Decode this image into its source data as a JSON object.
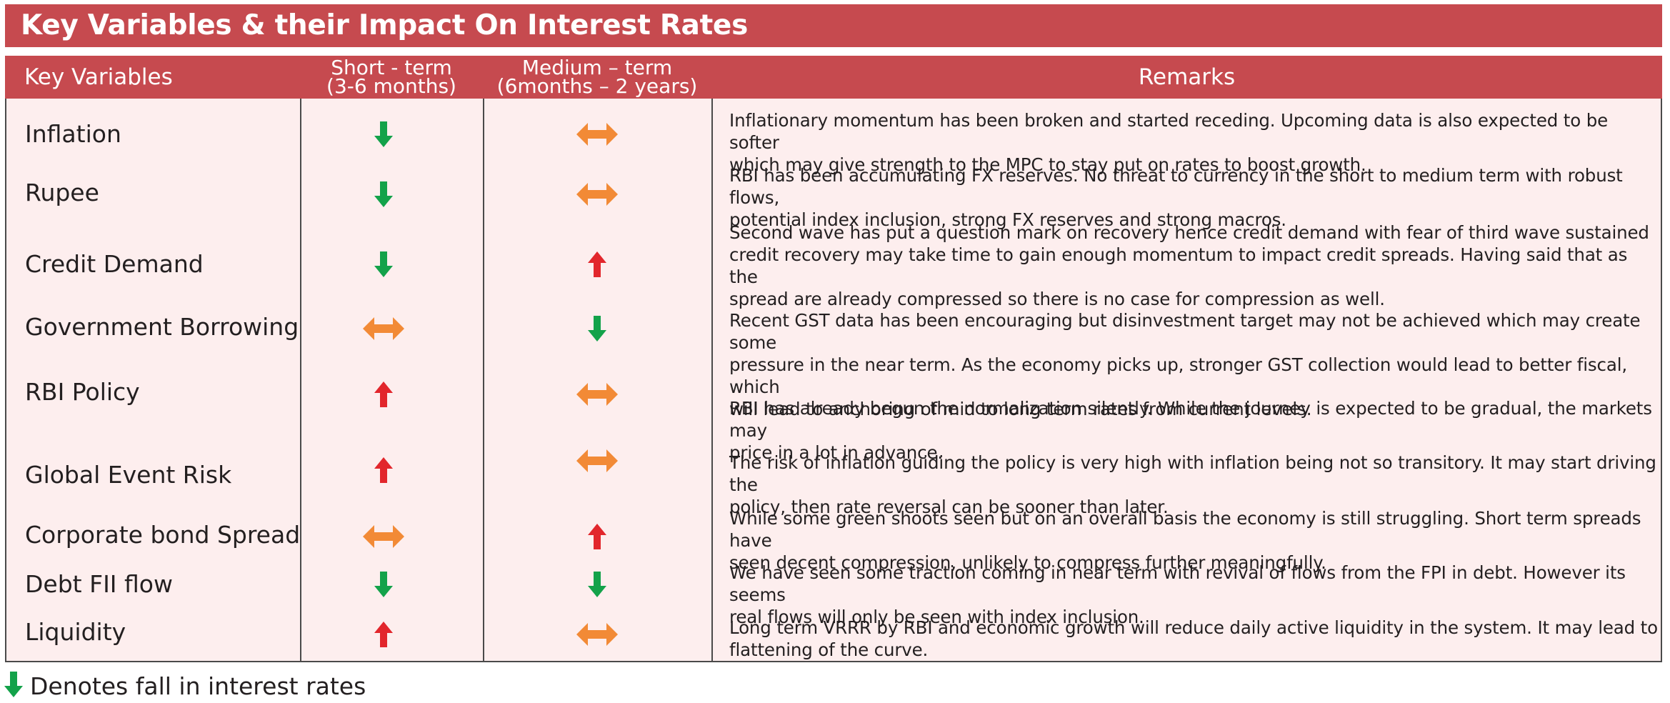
{
  "title": "Key Variables & their Impact On Interest Rates",
  "columns": {
    "variable": "Key Variables",
    "short_line1": "Short  - term",
    "short_line2": "(3-6 months)",
    "medium_line1": "Medium – term",
    "medium_line2": "(6months – 2 years)",
    "remarks": "Remarks"
  },
  "colors": {
    "header_bg": "#c64a4f",
    "body_bg": "#fdeeee",
    "down_arrow": "#13a24a",
    "up_arrow": "#e2262c",
    "sideways_arrow": "#f28a36"
  },
  "arrow_legend": {
    "down": "green down-arrow-icon",
    "up": "red up-arrow-icon",
    "flat": "orange left-right-arrow-icon"
  },
  "rows": [
    {
      "variable": "Inflation",
      "short_term": "down",
      "medium_term": "flat",
      "remark_lines": [
        "Inflationary momentum has been broken and started receding. Upcoming data is also expected to be softer",
        "which may give strength to the MPC to stay put on rates to boost  growth."
      ]
    },
    {
      "variable": "Rupee",
      "short_term": "down",
      "medium_term": "flat",
      "remark_lines": [
        "RBI has been accumulating FX reserves. No threat to currency in the short to medium term with robust flows,",
        "potential index inclusion, strong FX reserves and strong macros."
      ]
    },
    {
      "variable": "Credit Demand",
      "short_term": "down",
      "medium_term": "up",
      "remark_lines": [
        "Second wave has put a question mark on recovery hence credit demand with fear of third wave sustained",
        "credit recovery may take time to gain enough momentum to impact credit spreads. Having said that as the",
        "spread are already compressed so there is no case for compression as well."
      ]
    },
    {
      "variable": "Government Borrowing",
      "short_term": "flat",
      "medium_term": "down",
      "remark_lines": [
        "Recent GST data has been encouraging but disinvestment target may not be achieved which may create some",
        "pressure in the near term. As the economy picks up, stronger GST collection would lead to better fiscal, which",
        "will lead to anchoring of mid to long term rates from current levels."
      ]
    },
    {
      "variable": "RBI Policy",
      "short_term": "up",
      "medium_term": "flat",
      "remark_lines": [
        "RBI has already begun the normalization silently. While the journey is expected to be gradual, the markets may",
        "price in a lot in advance."
      ]
    },
    {
      "variable": "Global Event Risk",
      "short_term": "up",
      "medium_term": "flat",
      "remark_lines": [
        "The risk of inflation guiding the policy is very high with inflation being not so transitory. It may start driving the",
        "policy, then rate reversal can be sooner than later."
      ]
    },
    {
      "variable": "Corporate bond Spread",
      "short_term": "flat",
      "medium_term": "up",
      "remark_lines": [
        "While some green shoots seen but on an overall basis the economy is still struggling. Short term spreads have",
        "seen decent compression, unlikely to compress further meaningfully."
      ]
    },
    {
      "variable": "Debt FII flow",
      "short_term": "down",
      "medium_term": "down",
      "remark_lines": [
        "We have seen some traction coming in near term with revival of flows from the FPI in debt. However its seems",
        "real flows will only be seen with index inclusion."
      ]
    },
    {
      "variable": "Liquidity",
      "short_term": "up",
      "medium_term": "flat",
      "remark_lines": [
        "Long term VRRR by RBI and economic growth will reduce daily active liquidity in the system. It may lead to",
        "flattening of the curve."
      ]
    }
  ],
  "legend": "Denotes fall in interest rates"
}
